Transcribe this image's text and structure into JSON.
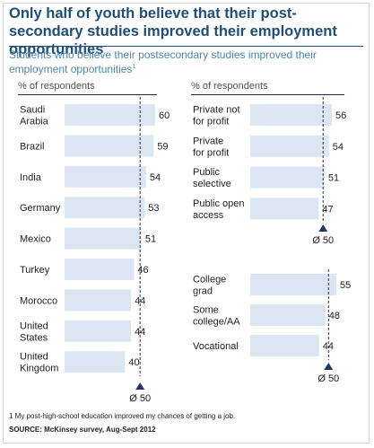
{
  "title": "Only half of youth believe that their post-secondary studies improved their employment opportunities",
  "subtitle": "Students who believe their postsecondary studies improved their employment opportunities",
  "subtitle_footnote_marker": "1",
  "footnote": "1 My post-high-school education improved my chances of getting a job.",
  "source": "SOURCE: McKinsey survey, Aug-Sept 2012",
  "colors": {
    "bar": "#dce6f2",
    "title": "#1f4e79",
    "subtitle": "#4a86b4",
    "marker": "#1f3864"
  },
  "chart_data": [
    {
      "type": "bar",
      "orientation": "horizontal",
      "ylabel": "% of respondents",
      "categories": [
        "Saudi\nArabia",
        "Brazil",
        "India",
        "Germany",
        "Mexico",
        "Turkey",
        "Morocco",
        "United\nStates",
        "United\nKingdom"
      ],
      "values": [
        60,
        59,
        54,
        53,
        51,
        46,
        44,
        44,
        40
      ],
      "average_label": "Ø 50",
      "average": 50,
      "xlim": [
        0,
        60
      ]
    },
    {
      "type": "bar",
      "orientation": "horizontal",
      "ylabel": "% of respondents",
      "categories": [
        "Private not\nfor profit",
        "Private\nfor profit",
        "Public\nselective",
        "Public open\naccess"
      ],
      "values": [
        56,
        54,
        51,
        47
      ],
      "average_label": "Ø 50",
      "average": 50,
      "xlim": [
        0,
        56
      ]
    },
    {
      "type": "bar",
      "orientation": "horizontal",
      "categories": [
        "College\ngrad",
        "Some\ncollege/AA",
        "Vocational"
      ],
      "values": [
        55,
        48,
        44
      ],
      "average_label": "Ø 50",
      "average": 50,
      "xlim": [
        0,
        55
      ]
    }
  ]
}
